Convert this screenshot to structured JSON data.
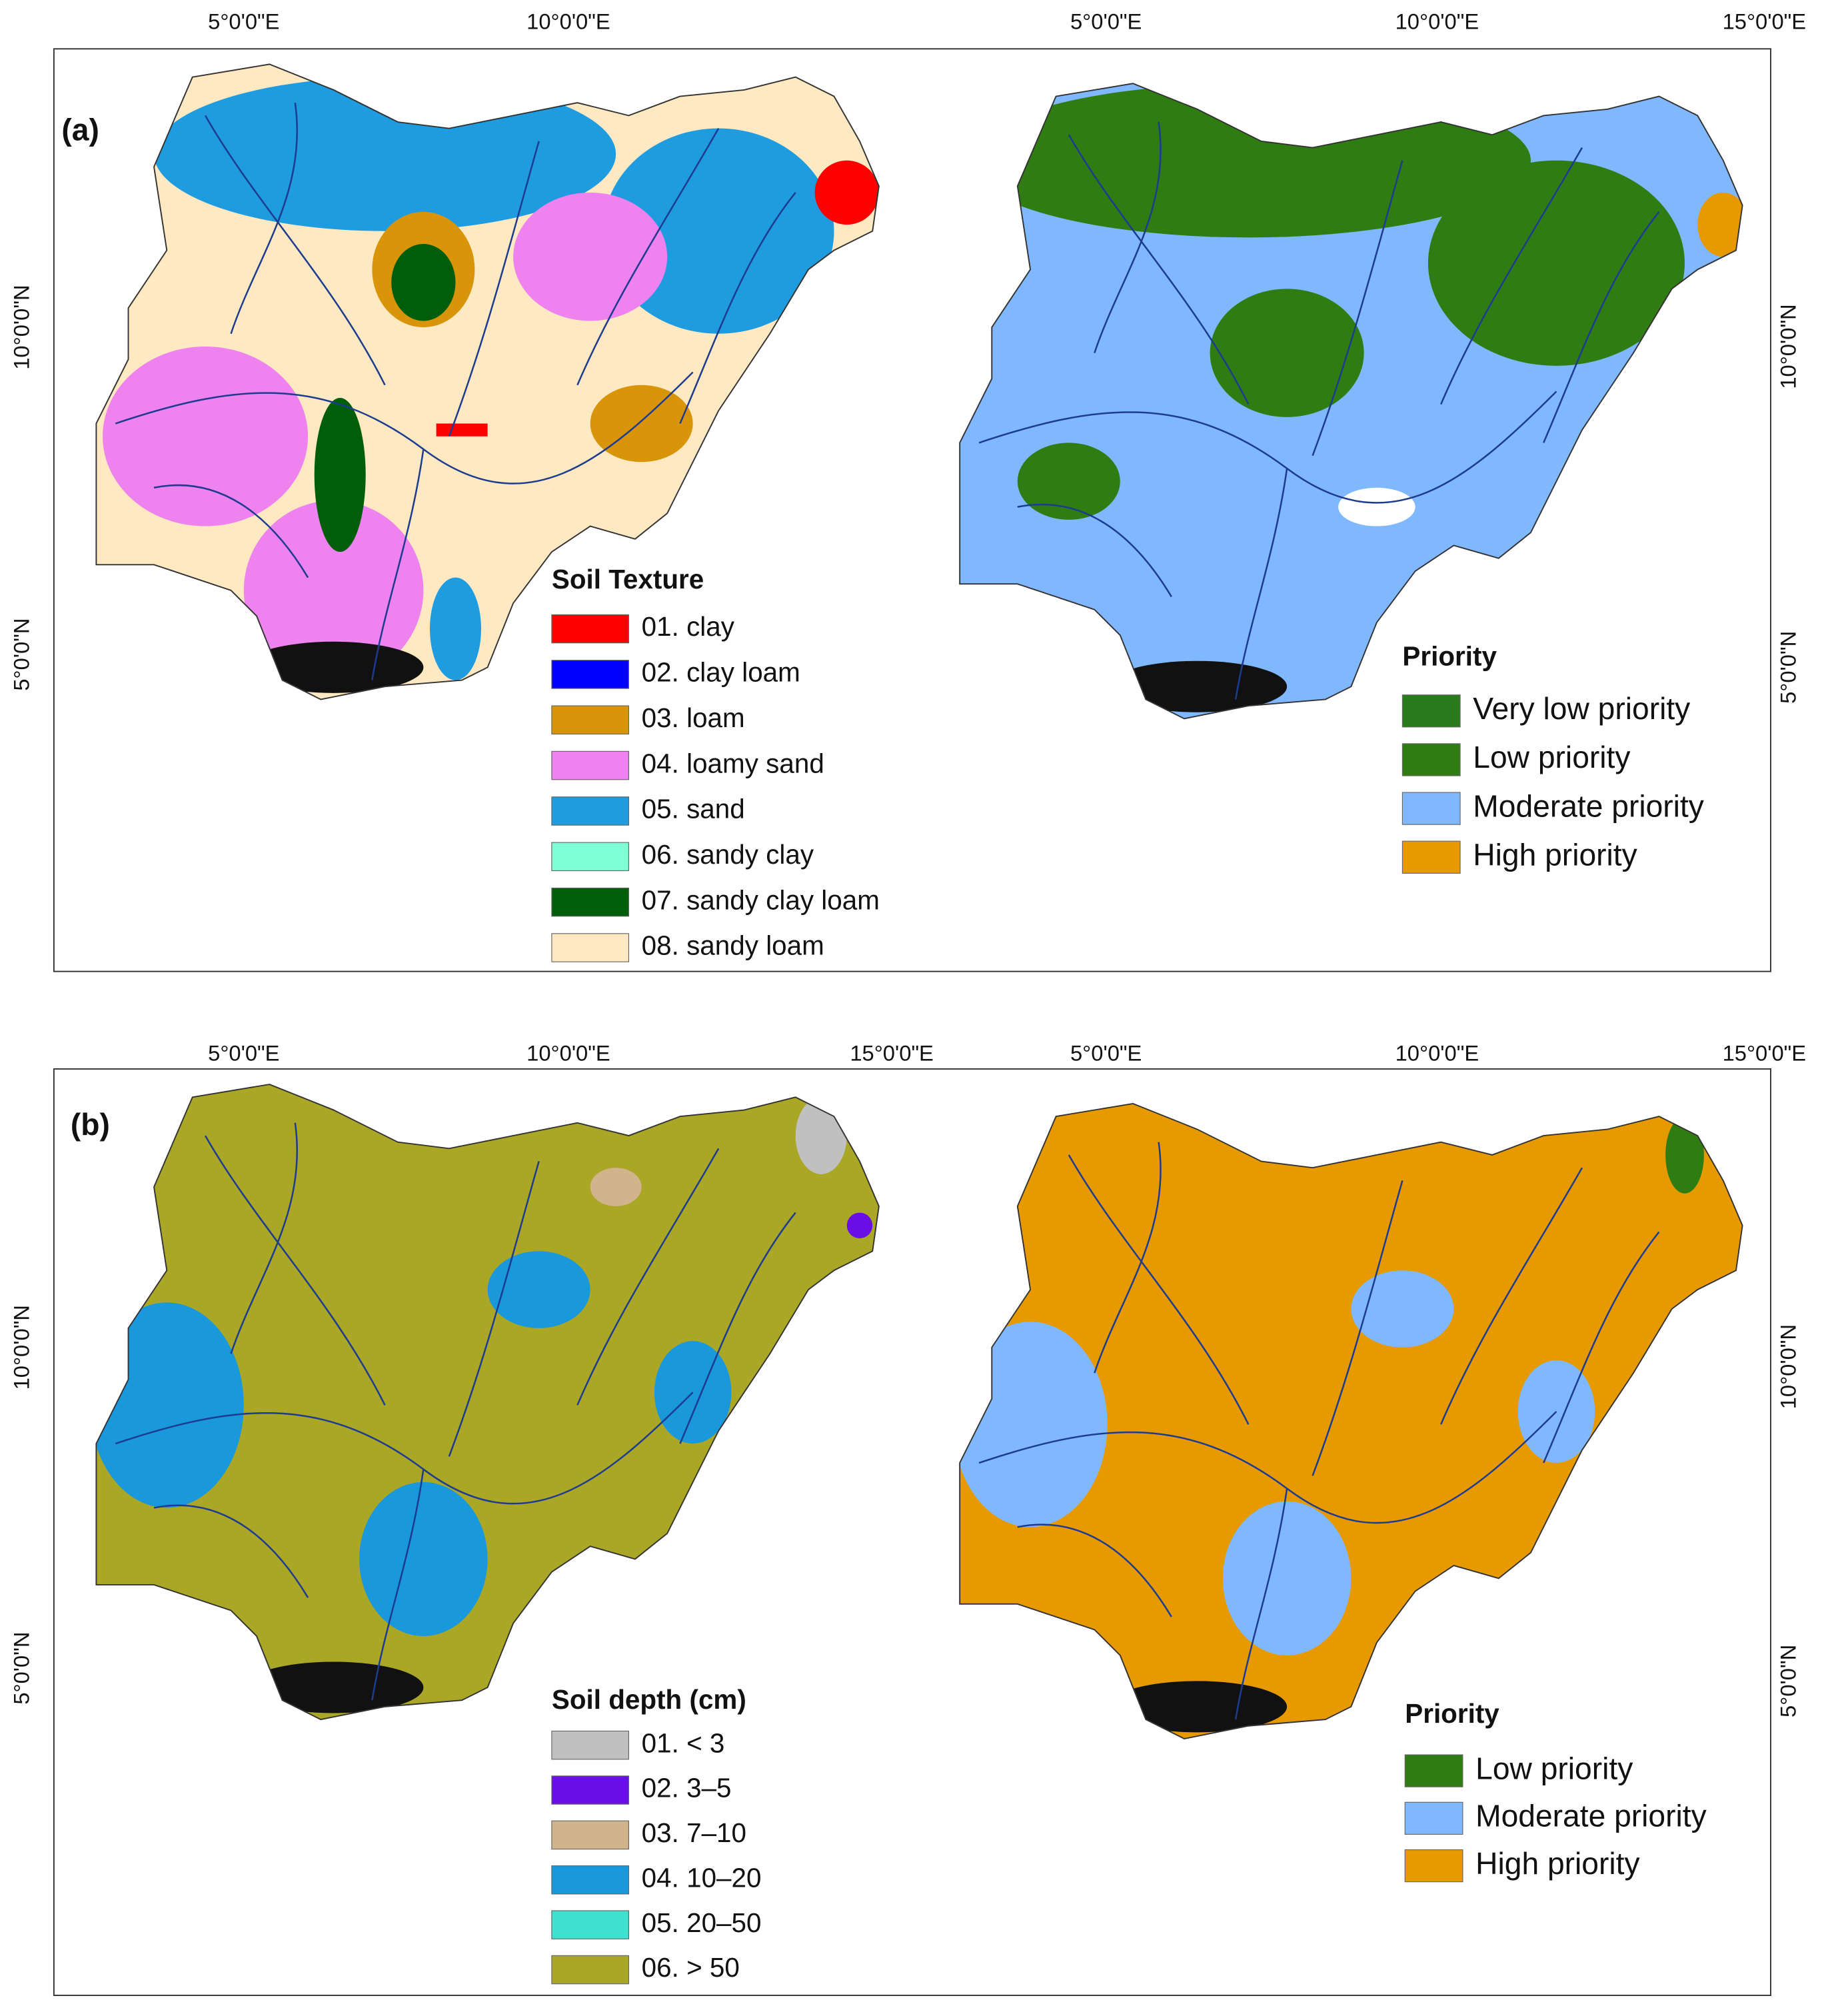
{
  "panels": [
    {
      "label": "(a)",
      "top_labels": [
        "5°0'0\"E",
        "10°0'0\"E",
        "5°0'0\"E",
        "10°0'0\"E",
        "15°0'0\"E"
      ],
      "left_labels": [
        "10°0'0\"N",
        "5°0'0\"N"
      ],
      "right_labels": [
        "10°0'0\"N",
        "5°0'0\"N"
      ],
      "legend_left": {
        "title": "Soil Texture",
        "items": [
          {
            "label": "01. clay",
            "color": "#ff0000"
          },
          {
            "label": "02. clay loam",
            "color": "#0000ff"
          },
          {
            "label": "03. loam",
            "color": "#d9950a"
          },
          {
            "label": "04. loamy sand",
            "color": "#ee82ee"
          },
          {
            "label": "05. sand",
            "color": "#1f9ce0"
          },
          {
            "label": "06. sandy clay",
            "color": "#7fffd4"
          },
          {
            "label": "07. sandy clay loam",
            "color": "#005e0a"
          },
          {
            "label": "08. sandy loam",
            "color": "#ffe9c2"
          }
        ]
      },
      "legend_right": {
        "title": "Priority",
        "items": [
          {
            "label": "Very low priority",
            "color": "#2a7b1c"
          },
          {
            "label": "Low priority",
            "color": "#2f7d12"
          },
          {
            "label": "Moderate priority",
            "color": "#80b8ff"
          },
          {
            "label": "High priority",
            "color": "#e69a00"
          }
        ]
      }
    },
    {
      "label": "(b)",
      "top_labels": [
        "5°0'0\"E",
        "10°0'0\"E",
        "15°0'0\"E",
        "5°0'0\"E",
        "10°0'0\"E",
        "15°0'0\"E"
      ],
      "left_labels": [
        "10°0'0\"N",
        "5°0'0\"N"
      ],
      "right_labels": [
        "10°0'0\"N",
        "5°0'0\"N"
      ],
      "legend_left": {
        "title": "Soil depth (cm)",
        "items": [
          {
            "label": "01. < 3",
            "color": "#c0c0c0"
          },
          {
            "label": "02. 3–5",
            "color": "#6a0ee8"
          },
          {
            "label": "03. 7–10",
            "color": "#d2b48c"
          },
          {
            "label": "04. 10–20",
            "color": "#1a98dc"
          },
          {
            "label": "05. 20–50",
            "color": "#40e0d0"
          },
          {
            "label": "06. > 50",
            "color": "#aaa626"
          }
        ]
      },
      "legend_right": {
        "title": "Priority",
        "items": [
          {
            "label": "Low priority",
            "color": "#2f7d12"
          },
          {
            "label": "Moderate priority",
            "color": "#80b8ff"
          },
          {
            "label": "High priority",
            "color": "#e69a00"
          }
        ]
      }
    }
  ]
}
